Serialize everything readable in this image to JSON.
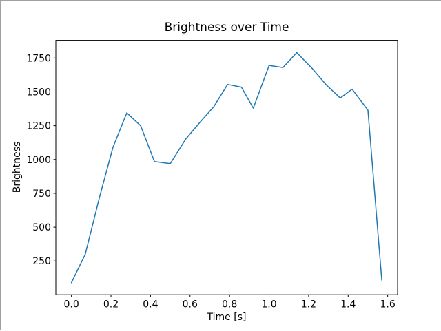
{
  "figure": {
    "title": "Brightness over Time",
    "xlabel": "Time [s]",
    "ylabel": "Brightness"
  },
  "chart_data": {
    "type": "line",
    "title": "Brightness over Time",
    "xlabel": "Time [s]",
    "ylabel": "Brightness",
    "grid": false,
    "legend": "none",
    "line_color": "#1f77b4",
    "background_color": "#ffffff",
    "spine_color": "#000000",
    "xlim": [
      -0.079,
      1.65
    ],
    "ylim": [
      1,
      1881
    ],
    "xtick_values": [
      0.0,
      0.2,
      0.4,
      0.6,
      0.8,
      1.0,
      1.2,
      1.4,
      1.6
    ],
    "xtick_labels": [
      "0.0",
      "0.2",
      "0.4",
      "0.6",
      "0.8",
      "1.0",
      "1.2",
      "1.4",
      "1.6"
    ],
    "ytick_values": [
      250,
      500,
      750,
      1000,
      1250,
      1500,
      1750
    ],
    "ytick_labels": [
      "250",
      "500",
      "750",
      "1000",
      "1250",
      "1500",
      "1750"
    ],
    "series": [
      {
        "name": "brightness",
        "x": [
          0.0,
          0.07,
          0.14,
          0.21,
          0.28,
          0.35,
          0.42,
          0.5,
          0.58,
          0.65,
          0.72,
          0.79,
          0.86,
          0.92,
          1.0,
          1.07,
          1.14,
          1.22,
          1.29,
          1.36,
          1.42,
          1.5,
          1.57
        ],
        "y": [
          90,
          300,
          710,
          1090,
          1345,
          1250,
          985,
          970,
          1155,
          1275,
          1390,
          1555,
          1535,
          1380,
          1695,
          1680,
          1790,
          1670,
          1550,
          1455,
          1520,
          1365,
          110
        ]
      }
    ]
  }
}
